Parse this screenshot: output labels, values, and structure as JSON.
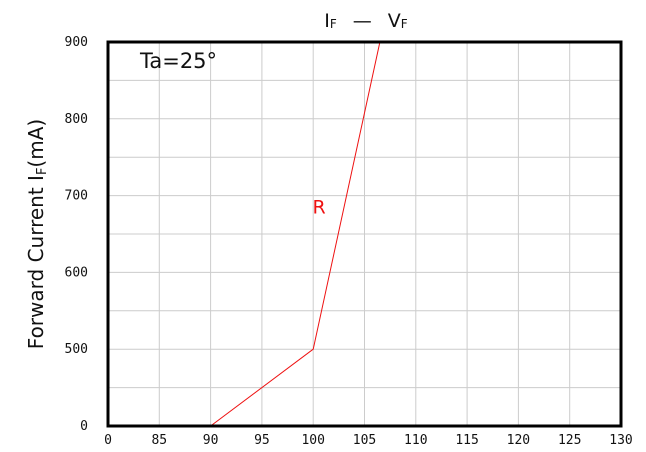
{
  "chart_data": {
    "type": "line",
    "title": "I_F — V_F",
    "title_parts": {
      "i": "I",
      "f1": "F",
      "dash": "—",
      "v": "V",
      "f2": "F"
    },
    "ylabel": "Forward Current I_F(mA)",
    "ylabel_parts": {
      "text": "Forward Current I",
      "sub": "F",
      "unit": "(mA)"
    },
    "xlabel": "",
    "annotation": "Ta=25°",
    "x_categories": [
      "0",
      "85",
      "90",
      "95",
      "100",
      "105",
      "110",
      "115",
      "120",
      "125",
      "130"
    ],
    "y_ticks": [
      "0",
      "500",
      "600",
      "700",
      "800",
      "900"
    ],
    "grid": true,
    "series": [
      {
        "name": "R",
        "color": "#ee1111",
        "points": [
          {
            "x": "90",
            "y": "0"
          },
          {
            "x": "100",
            "y": "500"
          },
          {
            "x": "106.5",
            "y": "900"
          }
        ]
      }
    ]
  }
}
